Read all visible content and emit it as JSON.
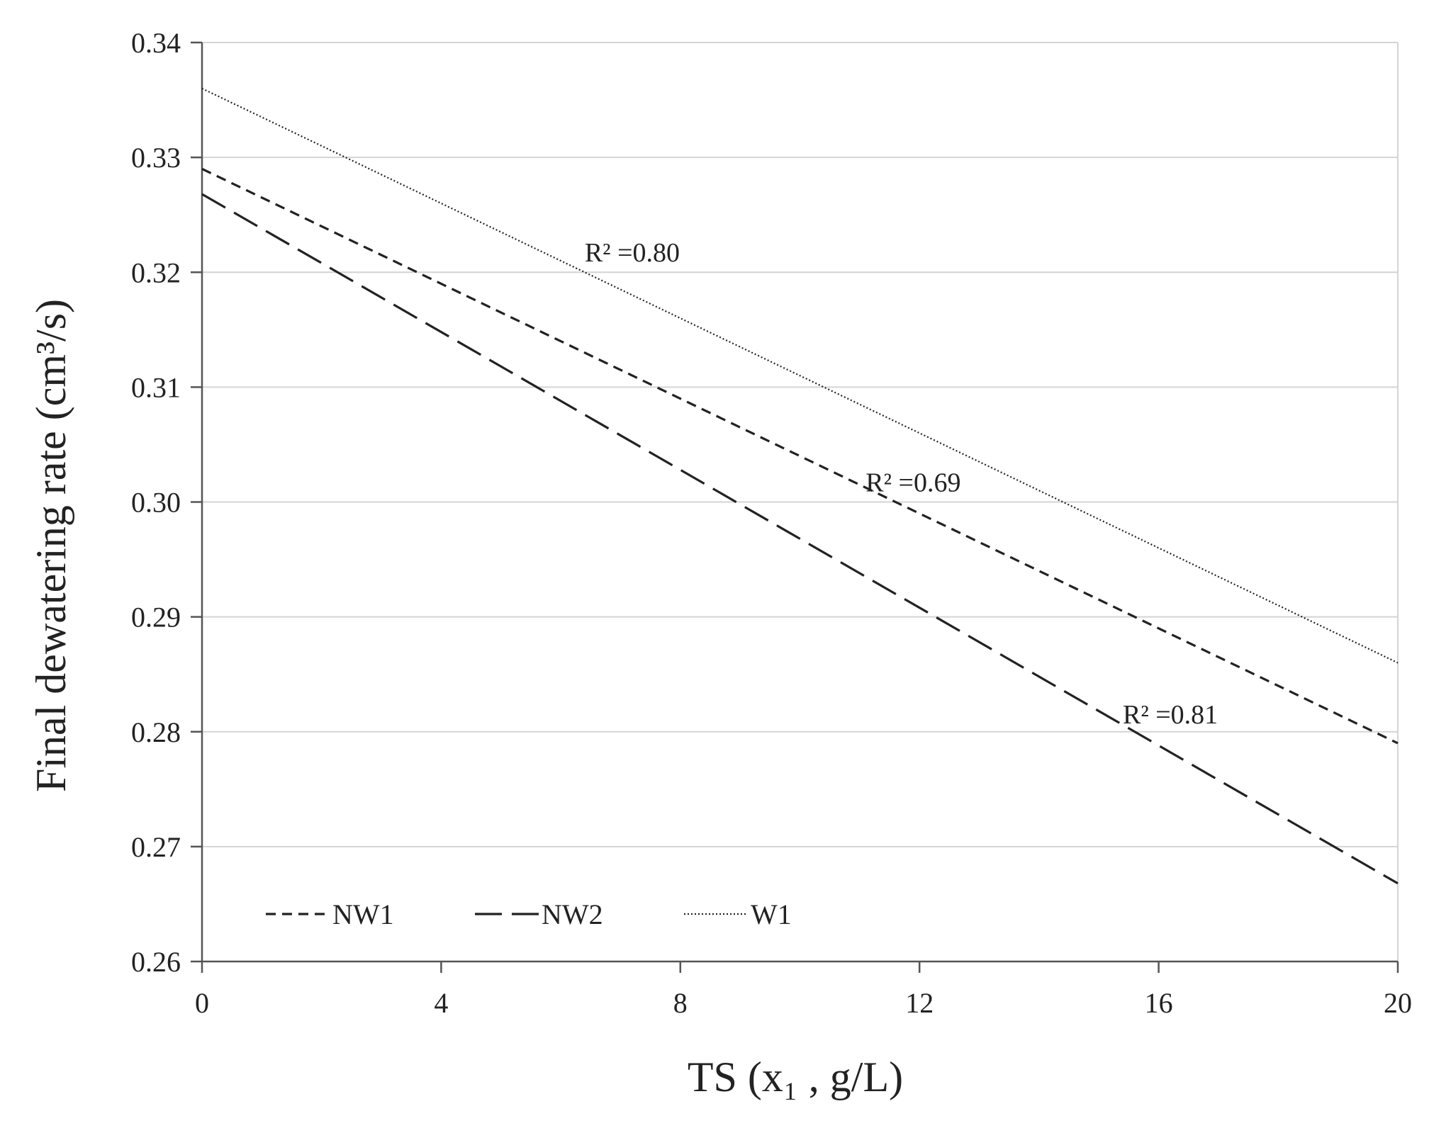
{
  "chart_data": {
    "type": "line",
    "xlabel": "TS (x₁ , g/L)",
    "ylabel": "Final dewatering rate  (cm³/s)",
    "xlim": [
      0,
      20
    ],
    "ylim": [
      0.26,
      0.34
    ],
    "x_ticks": [
      0,
      4,
      8,
      12,
      16,
      20
    ],
    "x_tick_labels": [
      "0",
      "4",
      "8",
      "12",
      "16",
      "20"
    ],
    "y_ticks": [
      0.26,
      0.27,
      0.28,
      0.29,
      0.3,
      0.31,
      0.32,
      0.33,
      0.34
    ],
    "y_tick_labels": [
      "0.26",
      "0.27",
      "0.28",
      "0.29",
      "0.30",
      "0.31",
      "0.32",
      "0.33",
      "0.34"
    ],
    "grid": "horizontal",
    "legend_position": "bottom-left",
    "series": [
      {
        "name": "NW1",
        "style": "short-dash",
        "color": "#222222",
        "x": [
          0,
          20
        ],
        "y": [
          0.329,
          0.279
        ]
      },
      {
        "name": "NW2",
        "style": "long-dash",
        "color": "#222222",
        "x": [
          0,
          20
        ],
        "y": [
          0.3268,
          0.2668
        ]
      },
      {
        "name": "W1",
        "style": "dotted",
        "color": "#222222",
        "x": [
          0,
          20
        ],
        "y": [
          0.336,
          0.286
        ]
      }
    ],
    "annotations": [
      {
        "text": "R² =0.80",
        "x": 6.4,
        "y": 0.3218
      },
      {
        "text": "R² =0.69",
        "x": 11.1,
        "y": 0.3018
      },
      {
        "text": "R² =0.81",
        "x": 15.4,
        "y": 0.2816
      }
    ]
  }
}
